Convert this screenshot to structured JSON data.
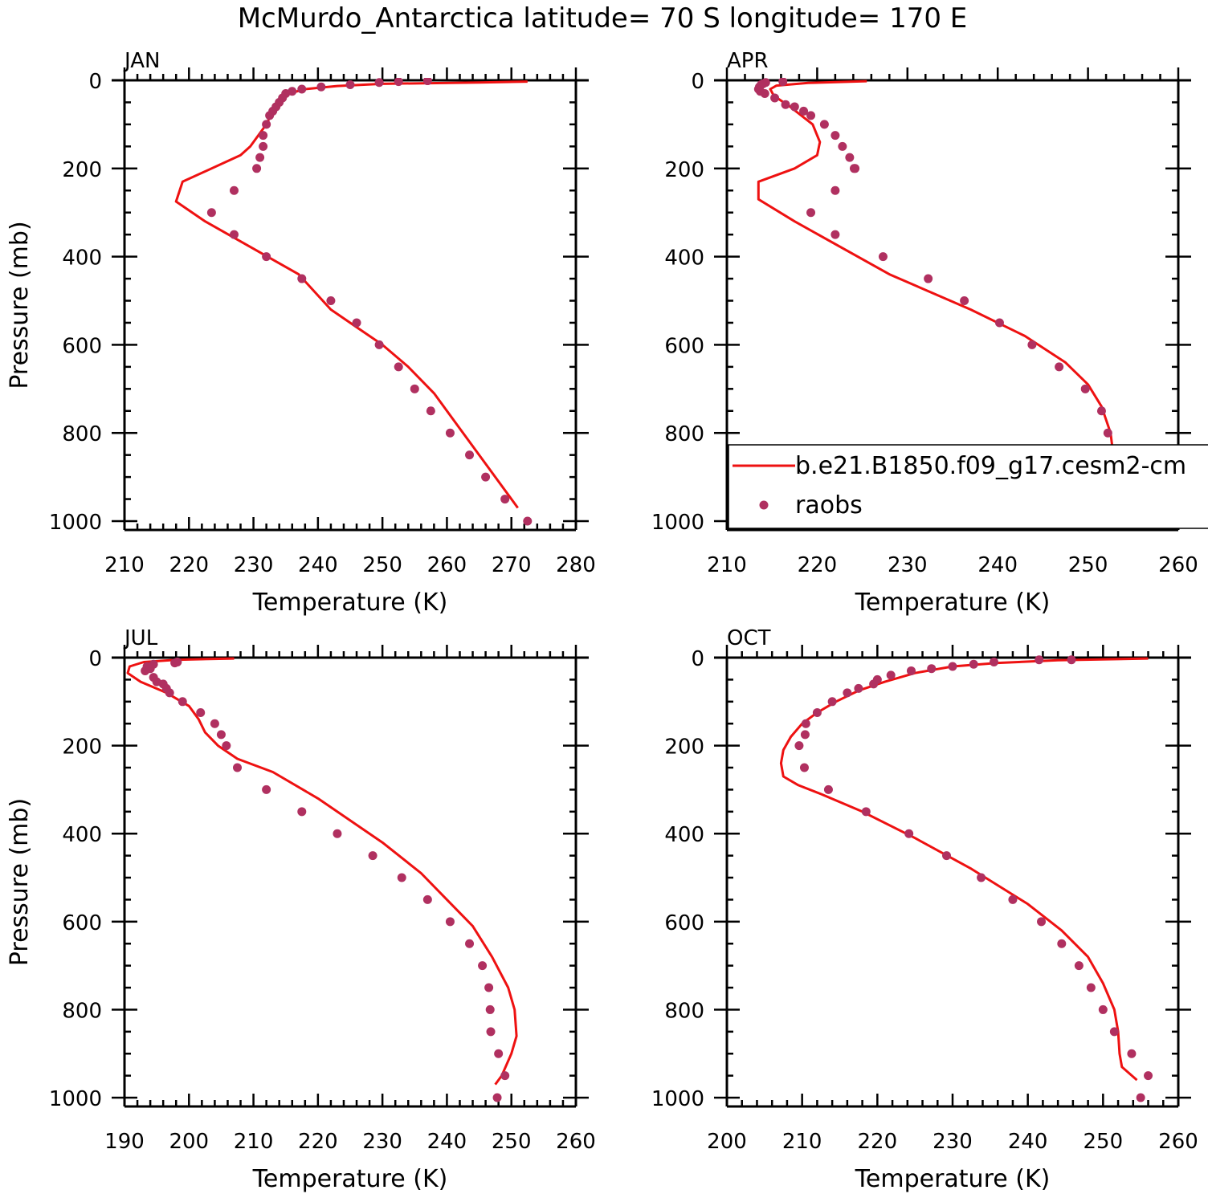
{
  "title": "McMurdo_Antarctica  latitude= 70 S longitude= 170 E",
  "colors": {
    "model": "#ee1111",
    "obs": "#b03060"
  },
  "legend": {
    "model": "b.e21.B1850.f09_g17.cesm2-cm",
    "obs": "raobs"
  },
  "chart_data": [
    {
      "type": "line",
      "panel": "JAN",
      "xlabel": "Temperature (K)",
      "ylabel": "Pressure (mb)",
      "xlim": [
        210,
        280
      ],
      "ylim": [
        1000,
        0
      ],
      "xticks": [
        210,
        220,
        230,
        240,
        250,
        260,
        270,
        280
      ],
      "yticks": [
        0,
        200,
        400,
        600,
        800,
        1000
      ],
      "series": [
        {
          "name": "b.e21.B1850.f09_g17.cesm2-cm",
          "kind": "line",
          "x": [
            272.5,
            265,
            250,
            243,
            238,
            235.5,
            234,
            233,
            232,
            229.5,
            228,
            219,
            218,
            222.5,
            237,
            242,
            246,
            250,
            254,
            258,
            262,
            266,
            271
          ],
          "y": [
            3,
            5,
            8,
            13,
            20,
            30,
            45,
            70,
            100,
            150,
            170,
            230,
            275,
            320,
            440,
            520,
            560,
            600,
            650,
            710,
            790,
            870,
            970
          ]
        },
        {
          "name": "raobs",
          "kind": "points",
          "x": [
            257,
            252.5,
            249.5,
            245,
            240.5,
            237.5,
            236,
            235,
            234.5,
            234,
            233.5,
            233,
            232.5,
            232,
            231.5,
            231.5,
            231,
            230.5,
            227,
            223.5,
            227,
            232,
            237.5,
            242,
            246,
            249.5,
            252.5,
            255,
            257.5,
            260.5,
            263.5,
            266,
            269,
            272.5
          ],
          "y": [
            1,
            3,
            5,
            10,
            15,
            20,
            25,
            30,
            40,
            50,
            60,
            70,
            80,
            100,
            125,
            150,
            175,
            200,
            250,
            300,
            350,
            400,
            450,
            500,
            550,
            600,
            650,
            700,
            750,
            800,
            850,
            900,
            950,
            1000
          ]
        }
      ]
    },
    {
      "type": "line",
      "panel": "APR",
      "xlabel": "Temperature (K)",
      "ylabel": "",
      "xlim": [
        210,
        260
      ],
      "ylim": [
        1000,
        0
      ],
      "xticks": [
        210,
        220,
        230,
        240,
        250,
        260
      ],
      "yticks": [
        0,
        200,
        400,
        600,
        800,
        1000
      ],
      "series": [
        {
          "name": "b.e21.B1850.f09_g17.cesm2-cm",
          "kind": "line",
          "x": [
            225.5,
            219,
            215.5,
            214.8,
            215.2,
            217,
            219.5,
            220.3,
            220,
            217.5,
            213.5,
            213.5,
            217.5,
            228,
            237,
            243,
            247.5,
            250,
            251.5,
            252.5,
            252.8,
            252.2,
            251.2,
            251,
            251.5
          ],
          "y": [
            2,
            6,
            12,
            20,
            35,
            60,
            100,
            140,
            170,
            200,
            230,
            270,
            320,
            440,
            520,
            580,
            640,
            690,
            740,
            800,
            850,
            880,
            920,
            950,
            970
          ]
        },
        {
          "name": "raobs",
          "kind": "points",
          "x": [
            216.2,
            214.3,
            214.0,
            213.8,
            213.6,
            213.5,
            213.7,
            214.2,
            215.3,
            216.5,
            217.5,
            218.5,
            219.3,
            220.8,
            222,
            222.8,
            223.6,
            224.1,
            224.2,
            222,
            219.3,
            222,
            227.3,
            232.3,
            236.3,
            240.2,
            243.8,
            246.8,
            249.7,
            251.5,
            252.2,
            252.4,
            254.0,
            255.8,
            256.3
          ],
          "y": [
            3,
            5,
            8,
            10,
            15,
            20,
            25,
            30,
            40,
            55,
            60,
            70,
            80,
            100,
            125,
            150,
            175,
            200,
            200,
            250,
            300,
            350,
            400,
            450,
            500,
            550,
            600,
            650,
            700,
            750,
            800,
            850,
            900,
            950,
            1000
          ]
        }
      ]
    },
    {
      "type": "line",
      "panel": "JUL",
      "xlabel": "Temperature (K)",
      "ylabel": "Pressure (mb)",
      "xlim": [
        190,
        260
      ],
      "ylim": [
        1000,
        0
      ],
      "xticks": [
        190,
        200,
        210,
        220,
        230,
        240,
        250,
        260
      ],
      "yticks": [
        0,
        200,
        400,
        600,
        800,
        1000
      ],
      "series": [
        {
          "name": "b.e21.B1850.f09_g17.cesm2-cm",
          "kind": "line",
          "x": [
            207,
            198,
            193,
            190.8,
            190.5,
            192.5,
            196.5,
            200,
            201.5,
            202.5,
            204.5,
            207.5,
            213,
            220,
            230,
            236,
            240,
            244,
            247,
            249.5,
            250.5,
            250.8,
            250,
            248.5,
            247.5
          ],
          "y": [
            2,
            5,
            10,
            20,
            35,
            55,
            80,
            110,
            140,
            170,
            200,
            230,
            260,
            320,
            420,
            490,
            550,
            610,
            680,
            750,
            800,
            860,
            900,
            950,
            970
          ]
        },
        {
          "name": "raobs",
          "kind": "points",
          "x": [
            198.2,
            197.8,
            194.5,
            193.5,
            193.2,
            194,
            194.5,
            195,
            196,
            196.5,
            197,
            199,
            201.8,
            204,
            205,
            205.8,
            207.5,
            212,
            217.5,
            223,
            228.5,
            233,
            237,
            240.5,
            243.5,
            245.5,
            246.5,
            246.7,
            246.8,
            248,
            249,
            247.8
          ],
          "y": [
            10,
            12,
            15,
            20,
            30,
            25,
            45,
            55,
            60,
            70,
            80,
            100,
            125,
            150,
            175,
            200,
            250,
            300,
            350,
            400,
            450,
            500,
            550,
            600,
            650,
            700,
            750,
            800,
            850,
            900,
            950,
            1000
          ]
        }
      ]
    },
    {
      "type": "line",
      "panel": "OCT",
      "xlabel": "Temperature (K)",
      "ylabel": "",
      "xlim": [
        200,
        260
      ],
      "ylim": [
        1000,
        0
      ],
      "xticks": [
        200,
        210,
        220,
        230,
        240,
        250,
        260
      ],
      "yticks": [
        0,
        200,
        400,
        600,
        800,
        1000
      ],
      "series": [
        {
          "name": "b.e21.B1850.f09_g17.cesm2-cm",
          "kind": "line",
          "x": [
            256,
            244,
            236,
            230,
            225,
            221,
            217.5,
            214.5,
            212,
            210,
            208.5,
            207.5,
            207.2,
            207.5,
            209.5,
            212.5,
            218,
            225,
            232.5,
            240,
            244.5,
            248,
            250,
            251.5,
            252,
            252.2,
            252.5,
            254.5
          ],
          "y": [
            2,
            6,
            12,
            20,
            35,
            55,
            75,
            100,
            125,
            150,
            180,
            210,
            240,
            270,
            290,
            310,
            350,
            410,
            480,
            560,
            620,
            680,
            740,
            800,
            850,
            900,
            930,
            960
          ]
        },
        {
          "name": "raobs",
          "kind": "points",
          "x": [
            245.8,
            241.5,
            235.5,
            232.8,
            230,
            227.2,
            224.5,
            221.8,
            220,
            219.5,
            217.5,
            216,
            214,
            212,
            210.5,
            210.4,
            209.6,
            210.3,
            213.5,
            218.5,
            224.2,
            229.2,
            233.8,
            238,
            241.8,
            244.5,
            246.8,
            248.4,
            250,
            251.5,
            253.8,
            256,
            255
          ],
          "y": [
            5,
            5,
            10,
            15,
            20,
            25,
            30,
            40,
            50,
            60,
            70,
            80,
            100,
            125,
            150,
            175,
            200,
            250,
            300,
            350,
            400,
            450,
            500,
            550,
            600,
            650,
            700,
            750,
            800,
            850,
            900,
            950,
            1000
          ]
        }
      ]
    }
  ]
}
